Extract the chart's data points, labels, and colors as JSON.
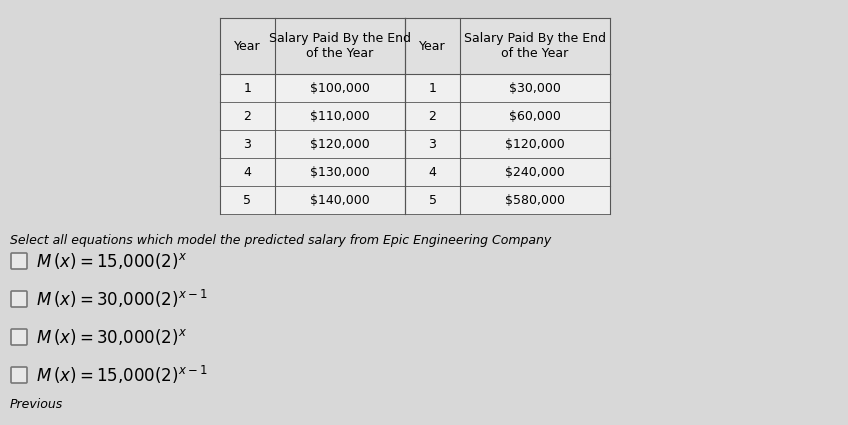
{
  "bg_color": "#d8d8d8",
  "table_bg": "#f0f0f0",
  "table_header_bg": "#e0e0e0",
  "table_border_color": "#555555",
  "left_table": {
    "headers": [
      "Year",
      "Salary Paid By the End\nof the Year"
    ],
    "rows": [
      [
        "1",
        "$100,000"
      ],
      [
        "2",
        "$110,000"
      ],
      [
        "3",
        "$120,000"
      ],
      [
        "4",
        "$130,000"
      ],
      [
        "5",
        "$140,000"
      ]
    ]
  },
  "right_table": {
    "headers": [
      "Year",
      "Salary Paid By the End\nof the Year"
    ],
    "rows": [
      [
        "1",
        "$30,000"
      ],
      [
        "2",
        "$60,000"
      ],
      [
        "3",
        "$120,000"
      ],
      [
        "4",
        "$240,000"
      ],
      [
        "5",
        "$580,000"
      ]
    ]
  },
  "question_text": "Select all equations which model the predicted salary from Epic Engineering Company",
  "options": [
    "M (​x​) = 15,000(2)ˣ",
    "M (​x​) = 30,000(2)ˣ⁻¹",
    "M (​x​) = 30,000(2)ˣ",
    "M (​x​) = 15,000(2)ˣ⁻¹"
  ],
  "previous_text": "Previous",
  "question_fontsize": 9,
  "option_fontsize": 10,
  "table_fontsize": 9,
  "title_fontsize": 9
}
